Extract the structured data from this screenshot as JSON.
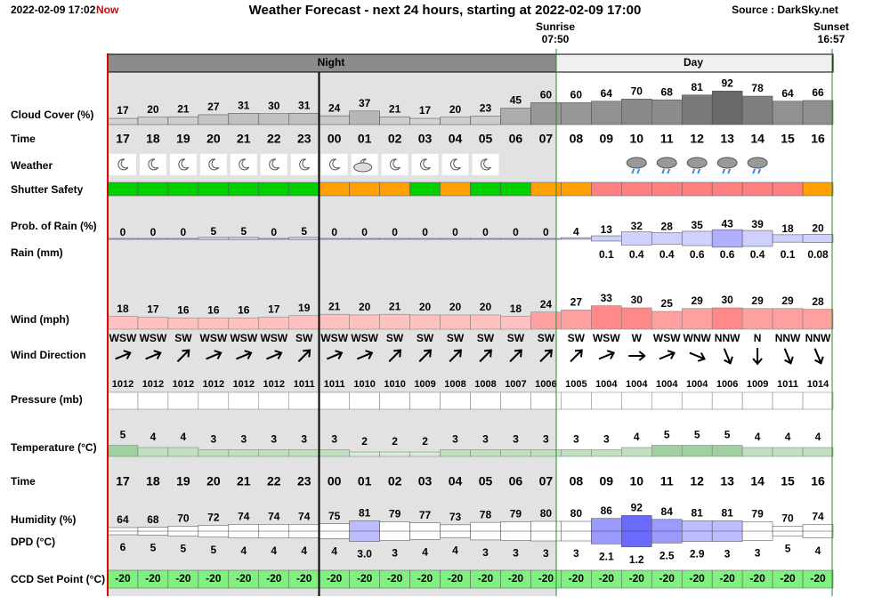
{
  "header": {
    "timestamp": "2022-02-09 17:02",
    "now": "Now",
    "title": "Weather Forecast - next 24 hours, starting at 2022-02-09 17:00",
    "source": "Source : DarkSky.net",
    "sunrise_label": "Sunrise",
    "sunrise": "07:50",
    "sunset_label": "Sunset",
    "sunset": "16:57",
    "night": "Night",
    "day": "Day"
  },
  "labels": {
    "cloud": "Cloud Cover (%)",
    "time": "Time",
    "weather": "Weather",
    "shutter": "Shutter Safety",
    "prob": "Prob. of Rain (%)",
    "rain": "Rain (mm)",
    "wind": "Wind (mph)",
    "wind_dir": "Wind Direction",
    "pressure": "Pressure (mb)",
    "temperature": "Temperature (°C)",
    "humidity": "Humidity (%)",
    "dpd": "DPD (°C)",
    "ccd": "CCD Set Point (°C)"
  },
  "rows": {
    "hours": [
      "17",
      "18",
      "19",
      "20",
      "21",
      "22",
      "23",
      "00",
      "01",
      "02",
      "03",
      "04",
      "05",
      "06",
      "07",
      "08",
      "09",
      "10",
      "11",
      "12",
      "13",
      "14",
      "15",
      "16"
    ],
    "cloud": [
      17,
      20,
      21,
      27,
      31,
      30,
      31,
      24,
      37,
      21,
      17,
      20,
      23,
      45,
      60,
      60,
      64,
      70,
      68,
      81,
      92,
      78,
      64,
      66
    ],
    "prob": [
      0,
      0,
      0,
      5,
      5,
      0,
      5,
      0,
      0,
      0,
      0,
      0,
      0,
      0,
      0,
      4,
      13,
      32,
      28,
      35,
      43,
      39,
      18,
      20
    ],
    "rain": [
      null,
      null,
      null,
      null,
      null,
      null,
      null,
      null,
      null,
      null,
      null,
      null,
      null,
      null,
      null,
      null,
      0.1,
      0.4,
      0.4,
      0.6,
      0.6,
      0.4,
      0.1,
      0.08
    ],
    "wind": [
      18,
      17,
      16,
      16,
      16,
      17,
      19,
      21,
      20,
      21,
      20,
      20,
      20,
      18,
      24,
      27,
      33,
      30,
      25,
      29,
      30,
      29,
      29,
      28
    ],
    "wind_dir": [
      "WSW",
      "WSW",
      "SW",
      "WSW",
      "WSW",
      "WSW",
      "SW",
      "WSW",
      "WSW",
      "SW",
      "SW",
      "SW",
      "SW",
      "SW",
      "SW",
      "SW",
      "WSW",
      "W",
      "WSW",
      "WNW",
      "NNW",
      "N",
      "NNW",
      "NNW"
    ],
    "pressure": [
      1012,
      1012,
      1012,
      1012,
      1012,
      1012,
      1011,
      1011,
      1010,
      1010,
      1009,
      1008,
      1008,
      1007,
      1006,
      1005,
      1004,
      1004,
      1004,
      1004,
      1006,
      1009,
      1011,
      1014
    ],
    "temperature": [
      5,
      4,
      4,
      3,
      3,
      3,
      3,
      3,
      2,
      2,
      2,
      3,
      3,
      3,
      3,
      3,
      3,
      4,
      5,
      5,
      5,
      4,
      4,
      4
    ],
    "humidity": [
      64,
      68,
      70,
      72,
      74,
      74,
      74,
      75,
      81,
      79,
      77,
      73,
      78,
      79,
      80,
      80,
      86,
      92,
      84,
      81,
      81,
      79,
      70,
      74
    ],
    "dpd": [
      6,
      5,
      5,
      5,
      4,
      4,
      4,
      4,
      "3.0",
      3,
      4,
      4,
      3,
      3,
      3,
      3,
      2.1,
      1.2,
      2.5,
      2.9,
      3,
      3,
      5,
      4
    ],
    "ccd": [
      -20,
      -20,
      -20,
      -20,
      -20,
      -20,
      -20,
      -20,
      -20,
      -20,
      -20,
      -20,
      -20,
      -20,
      -20,
      -20,
      -20,
      -20,
      -20,
      -20,
      -20,
      -20,
      -20,
      -20
    ]
  }
}
